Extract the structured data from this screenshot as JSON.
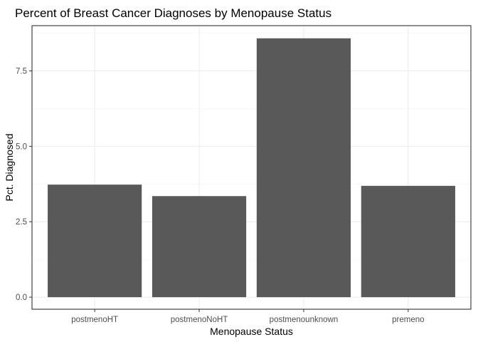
{
  "chart_data": {
    "type": "bar",
    "title": "Percent of Breast Cancer Diagnoses by Menopause Status",
    "xlabel": "Menopause Status",
    "ylabel": "Pct. Diagnosed",
    "categories": [
      "postmenoHT",
      "postmenoNoHT",
      "postmenounknown",
      "premeno"
    ],
    "values": [
      3.73,
      3.35,
      8.58,
      3.69
    ],
    "ylim": [
      -0.4,
      9.0
    ],
    "yticks": [
      0.0,
      2.5,
      5.0,
      7.5
    ],
    "ytick_labels": [
      "0.0",
      "2.5",
      "5.0",
      "7.5"
    ],
    "grid": true,
    "bar_color": "#595959",
    "theme": "bw"
  }
}
